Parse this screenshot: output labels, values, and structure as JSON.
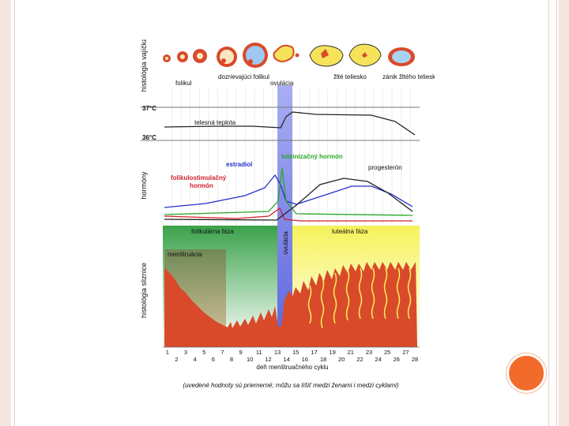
{
  "colors": {
    "follicular_phase": "#3aa24a",
    "luteal_phase": "#f6f25a",
    "ovulation_band": "#4b58d8",
    "menstruation": "#d94a2a",
    "estradiol": "#2430c8",
    "lh": "#2aa62a",
    "fsh": "#d3202a",
    "progesterone": "#222222",
    "accent": "#f36b2a"
  },
  "histology_ovum": {
    "section_label": "histológia vajíčka",
    "labels": [
      "folikul",
      "dozrievajúci folikul",
      "ovulácia",
      "žlté teliesko",
      "zánik žltého telieska"
    ]
  },
  "temperature": {
    "hi_label": "37°C",
    "lo_label": "36°C",
    "curve_label": "telesná teplota"
  },
  "hormones": {
    "section_label": "hormóny",
    "estradiol": "estradiol",
    "lh": "luteinizačný hormón",
    "fsh_line1": "folikulostimulačný",
    "fsh_line2": "hormón",
    "progesterone": "progesterón"
  },
  "phases": {
    "follicular": "folikulárna fáza",
    "ovulation": "ovulácia",
    "luteal": "luteálna fáza",
    "menstruation": "menštruácia"
  },
  "endometrium": {
    "section_label": "histológia sliznice"
  },
  "axis": {
    "odd_days": [
      "1",
      "3",
      "5",
      "7",
      "9",
      "11",
      "13",
      "15",
      "17",
      "19",
      "21",
      "23",
      "25",
      "27"
    ],
    "even_days": [
      "2",
      "4",
      "6",
      "8",
      "10",
      "12",
      "14",
      "16",
      "18",
      "20",
      "22",
      "24",
      "26",
      "28"
    ],
    "label": "deň menštruačného cyklu"
  },
  "footnote": "(uvedené hodnoty sú priemerné; môžu sa líšiť medzi ženami i medzi cyklami)"
}
